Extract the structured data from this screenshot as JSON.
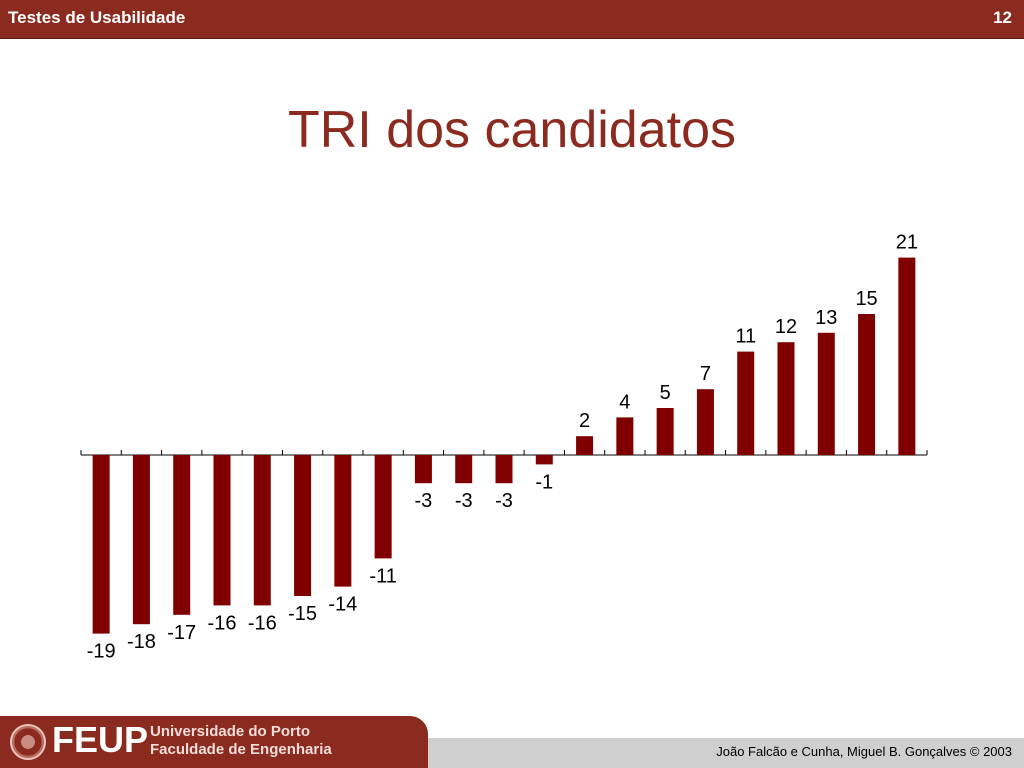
{
  "header": {
    "course": "Testes de Usabilidade",
    "page_number": "12"
  },
  "slide": {
    "title": "TRI dos candidatos"
  },
  "footer": {
    "logo_acronym": "FEUP",
    "logo_line1": "Universidade do Porto",
    "logo_line2": "Faculdade de Engenharia",
    "credits": "João Falcão e Cunha, Miguel B. Gonçalves    © 2003"
  },
  "colors": {
    "bar": "#800000",
    "brand": "#8b2a1e"
  },
  "chart_data": {
    "type": "bar",
    "values": [
      -19,
      -18,
      -17,
      -16,
      -16,
      -15,
      -14,
      -11,
      -3,
      -3,
      -3,
      -1,
      2,
      4,
      5,
      7,
      11,
      12,
      13,
      15,
      21
    ],
    "data_labels": [
      "-19",
      "-18",
      "-17",
      "-16",
      "-16",
      "-15",
      "-14",
      "-11",
      "-3",
      "-3",
      "-3",
      "-1",
      "2",
      "4",
      "5",
      "7",
      "11",
      "12",
      "13",
      "15",
      "21"
    ],
    "title": "",
    "xlabel": "",
    "ylabel": "",
    "grid": false,
    "legend": "none"
  }
}
